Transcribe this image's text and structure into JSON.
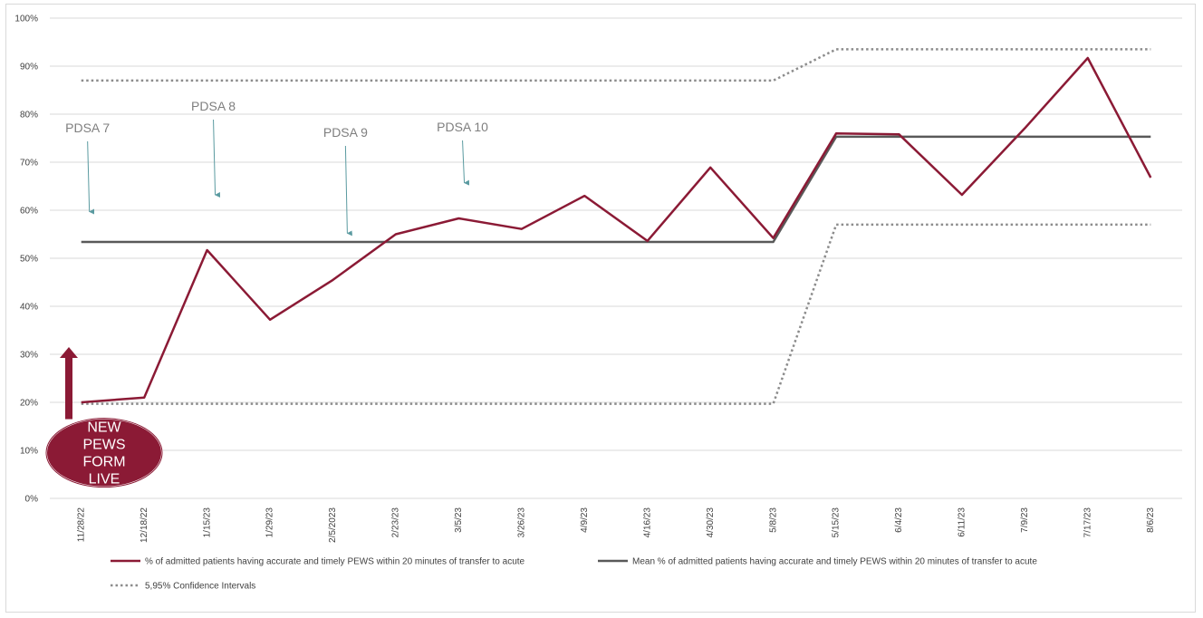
{
  "chart_data": {
    "type": "line",
    "ylim": [
      0,
      100
    ],
    "y_ticks": [
      "0%",
      "10%",
      "20%",
      "30%",
      "40%",
      "50%",
      "60%",
      "70%",
      "80%",
      "90%",
      "100%"
    ],
    "categories": [
      "11/28/22",
      "12/18/22",
      "1/15/23",
      "1/29/23",
      "2/5/2023",
      "2/23/23",
      "3/5/23",
      "3/26/23",
      "4/9/23",
      "4/16/23",
      "4/30/23",
      "5/8/23",
      "5/15/23",
      "6/4/23",
      "6/11/23",
      "7/9/23",
      "7/17/23",
      "8/6/23"
    ],
    "grid": true,
    "legend_position": "bottom",
    "series": [
      {
        "name": "% of admitted patients having accurate and timely PEWS within 20 minutes of transfer to acute",
        "color": "#8b1a35",
        "style": "solid",
        "values": [
          20,
          21,
          51.7,
          37.2,
          45.5,
          55,
          58.3,
          56.1,
          63,
          53.6,
          68.9,
          54.2,
          76,
          75.8,
          63.2,
          77.1,
          91.7,
          66.8
        ]
      },
      {
        "name": "Mean % of admitted patients having accurate and timely PEWS within 20 minutes of transfer to acute",
        "color": "#595959",
        "style": "solid",
        "values": [
          53.4,
          53.4,
          53.4,
          53.4,
          53.4,
          53.4,
          53.4,
          53.4,
          53.4,
          53.4,
          53.4,
          53.4,
          75.3,
          75.3,
          75.3,
          75.3,
          75.3,
          75.3
        ]
      },
      {
        "name": "5,95% Confidence Intervals",
        "color": "#8c8c8c",
        "style": "dotted",
        "values": [
          87,
          87,
          87,
          87,
          87,
          87,
          87,
          87,
          87,
          87,
          87,
          87,
          93.5,
          93.5,
          93.5,
          93.5,
          93.5,
          93.5
        ]
      },
      {
        "name": "",
        "color": "#8c8c8c",
        "style": "dotted",
        "values": [
          19.7,
          19.7,
          19.7,
          19.7,
          19.7,
          19.7,
          19.7,
          19.7,
          19.7,
          19.7,
          19.7,
          19.7,
          57,
          57,
          57,
          57,
          57,
          57
        ]
      }
    ],
    "annotations": [
      {
        "label": "PDSA 7",
        "category_index": 0.1,
        "arrow_to_value": 59.5
      },
      {
        "label": "PDSA 8",
        "category_index": 2.1,
        "arrow_to_value": 63
      },
      {
        "label": "PDSA 9",
        "category_index": 4.2,
        "arrow_to_value": 55
      },
      {
        "label": "PDSA 10",
        "category_index": 6.06,
        "arrow_to_value": 65.5
      }
    ],
    "callout": {
      "lines": [
        "NEW",
        "PEWS",
        "FORM",
        "LIVE"
      ],
      "color": "#8b1a35",
      "arrow_color": "#8b1a35"
    }
  }
}
